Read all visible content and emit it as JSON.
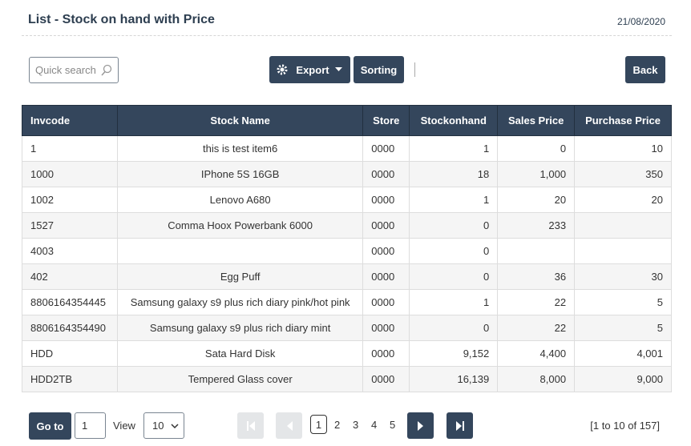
{
  "header": {
    "title": "List - Stock on hand with Price",
    "date": "21/08/2020"
  },
  "toolbar": {
    "search_placeholder": "Quick search",
    "export": "Export",
    "sorting": "Sorting",
    "back": "Back"
  },
  "table": {
    "columns": [
      "Invcode",
      "Stock Name",
      "Store",
      "Stockonhand",
      "Sales Price",
      "Purchase Price"
    ],
    "rows": [
      [
        "1",
        "this is test item6",
        "0000",
        "1",
        "0",
        "10"
      ],
      [
        "1000",
        "IPhone 5S 16GB",
        "0000",
        "18",
        "1,000",
        "350"
      ],
      [
        "1002",
        "Lenovo A680",
        "0000",
        "1",
        "20",
        "20"
      ],
      [
        "1527",
        "Comma Hoox Powerbank 6000",
        "0000",
        "0",
        "233",
        null
      ],
      [
        "4003",
        null,
        "0000",
        "0",
        null,
        null
      ],
      [
        "402",
        "Egg Puff",
        "0000",
        "0",
        "36",
        "30"
      ],
      [
        "8806164354445",
        "Samsung galaxy s9 plus rich diary pink/hot pink",
        "0000",
        "1",
        "22",
        "5"
      ],
      [
        "8806164354490",
        "Samsung galaxy s9 plus rich diary mint",
        "0000",
        "0",
        "22",
        "5"
      ],
      [
        "HDD",
        "Sata Hard Disk",
        "0000",
        "9,152",
        "4,400",
        "4,001"
      ],
      [
        "HDD2TB",
        "Tempered Glass cover",
        "0000",
        "16,139",
        "8,000",
        "9,000"
      ]
    ]
  },
  "pagination": {
    "goto": "Go to",
    "goto_value": "1",
    "view": "View",
    "page_size": "10",
    "pages": [
      "1",
      "2",
      "3",
      "4",
      "5"
    ],
    "summary": "[1 to 10 of 157]"
  }
}
